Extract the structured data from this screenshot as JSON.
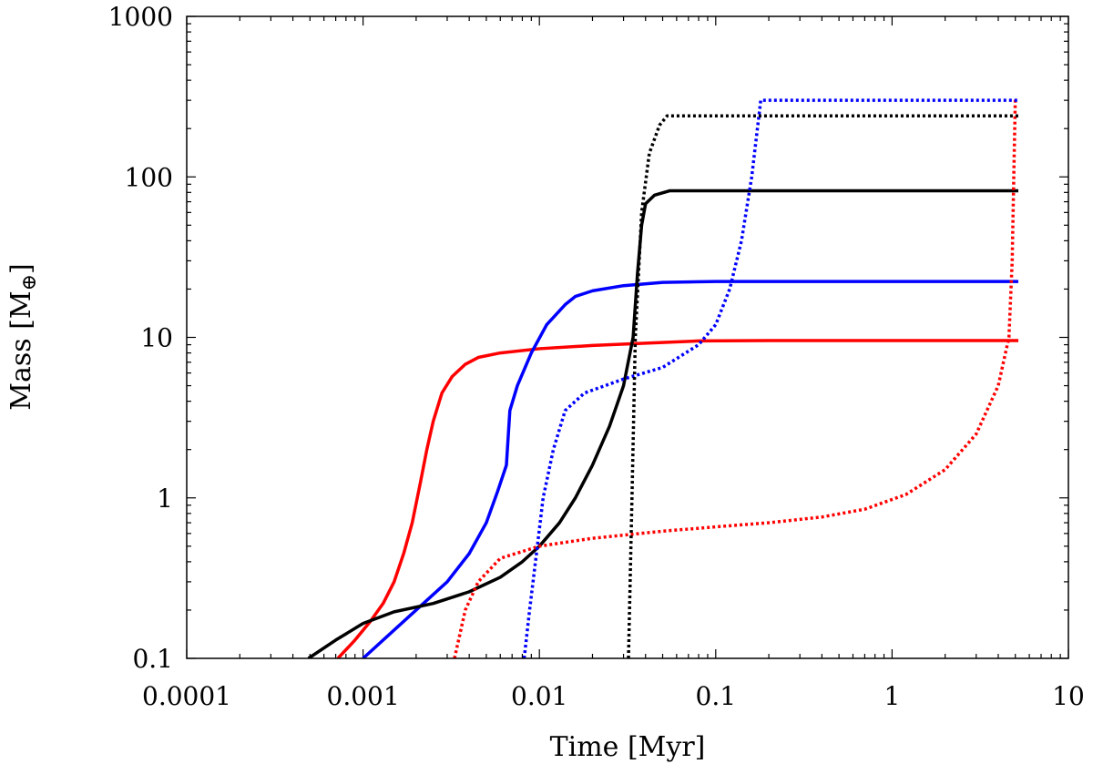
{
  "chart_data": {
    "type": "line",
    "xlabel": "Time [Myr]",
    "ylabel_main": "Mass [M",
    "ylabel_sub": "⊕",
    "ylabel_close": "]",
    "xscale": "log",
    "yscale": "log",
    "xlim": [
      0.0001,
      10
    ],
    "ylim": [
      0.1,
      1000
    ],
    "x_ticks": [
      {
        "value": 0.0001,
        "label": "0.0001"
      },
      {
        "value": 0.001,
        "label": "0.001"
      },
      {
        "value": 0.01,
        "label": "0.01"
      },
      {
        "value": 0.1,
        "label": "0.1"
      },
      {
        "value": 1,
        "label": "1"
      },
      {
        "value": 10,
        "label": "10"
      }
    ],
    "y_ticks": [
      {
        "value": 0.1,
        "label": "0.1"
      },
      {
        "value": 1,
        "label": "1"
      },
      {
        "value": 10,
        "label": "10"
      },
      {
        "value": 100,
        "label": "100"
      },
      {
        "value": 1000,
        "label": "1000"
      }
    ],
    "series": [
      {
        "name": "red-solid",
        "color": "#ff0000",
        "style": "solid",
        "points": [
          [
            0.00072,
            0.1
          ],
          [
            0.0009,
            0.13
          ],
          [
            0.0011,
            0.17
          ],
          [
            0.0013,
            0.22
          ],
          [
            0.0015,
            0.3
          ],
          [
            0.0017,
            0.45
          ],
          [
            0.0019,
            0.7
          ],
          [
            0.0021,
            1.2
          ],
          [
            0.0023,
            2.0
          ],
          [
            0.0025,
            3.0
          ],
          [
            0.0028,
            4.5
          ],
          [
            0.0032,
            5.7
          ],
          [
            0.0038,
            6.8
          ],
          [
            0.0045,
            7.5
          ],
          [
            0.006,
            8.0
          ],
          [
            0.01,
            8.5
          ],
          [
            0.02,
            8.9
          ],
          [
            0.04,
            9.2
          ],
          [
            0.08,
            9.5
          ],
          [
            0.2,
            9.55
          ],
          [
            1,
            9.55
          ],
          [
            5.2,
            9.55
          ]
        ]
      },
      {
        "name": "blue-solid",
        "color": "#0000ff",
        "style": "solid",
        "points": [
          [
            0.001,
            0.1
          ],
          [
            0.0015,
            0.15
          ],
          [
            0.002,
            0.2
          ],
          [
            0.003,
            0.3
          ],
          [
            0.004,
            0.45
          ],
          [
            0.005,
            0.7
          ],
          [
            0.0058,
            1.1
          ],
          [
            0.0065,
            1.6
          ],
          [
            0.0068,
            3.5
          ],
          [
            0.0075,
            5
          ],
          [
            0.009,
            8
          ],
          [
            0.011,
            12
          ],
          [
            0.014,
            16
          ],
          [
            0.016,
            18
          ],
          [
            0.02,
            19.5
          ],
          [
            0.03,
            21
          ],
          [
            0.05,
            22
          ],
          [
            0.1,
            22.3
          ],
          [
            1,
            22.3
          ],
          [
            5.2,
            22.3
          ]
        ]
      },
      {
        "name": "black-solid",
        "color": "#000000",
        "style": "solid",
        "points": [
          [
            0.00049,
            0.1
          ],
          [
            0.0007,
            0.13
          ],
          [
            0.001,
            0.165
          ],
          [
            0.0015,
            0.195
          ],
          [
            0.0025,
            0.22
          ],
          [
            0.004,
            0.26
          ],
          [
            0.006,
            0.32
          ],
          [
            0.008,
            0.4
          ],
          [
            0.01,
            0.5
          ],
          [
            0.013,
            0.7
          ],
          [
            0.016,
            1.0
          ],
          [
            0.02,
            1.6
          ],
          [
            0.025,
            2.8
          ],
          [
            0.03,
            5
          ],
          [
            0.034,
            10
          ],
          [
            0.036,
            25
          ],
          [
            0.038,
            50
          ],
          [
            0.04,
            68
          ],
          [
            0.045,
            77
          ],
          [
            0.055,
            82
          ],
          [
            0.1,
            82
          ],
          [
            1,
            82
          ],
          [
            5.2,
            82
          ]
        ]
      },
      {
        "name": "red-dotted",
        "color": "#ff0000",
        "style": "dotted",
        "points": [
          [
            0.0033,
            0.1
          ],
          [
            0.0038,
            0.2
          ],
          [
            0.0045,
            0.3
          ],
          [
            0.006,
            0.42
          ],
          [
            0.01,
            0.5
          ],
          [
            0.02,
            0.56
          ],
          [
            0.05,
            0.62
          ],
          [
            0.1,
            0.66
          ],
          [
            0.2,
            0.7
          ],
          [
            0.4,
            0.76
          ],
          [
            0.7,
            0.85
          ],
          [
            1.2,
            1.05
          ],
          [
            2,
            1.5
          ],
          [
            3,
            2.5
          ],
          [
            4,
            5
          ],
          [
            4.6,
            10
          ],
          [
            4.8,
            30
          ],
          [
            4.9,
            100
          ],
          [
            5.0,
            310
          ]
        ]
      },
      {
        "name": "blue-dotted",
        "color": "#0000ff",
        "style": "dotted",
        "points": [
          [
            0.0082,
            0.1
          ],
          [
            0.0088,
            0.2
          ],
          [
            0.0095,
            0.4
          ],
          [
            0.0105,
            1.0
          ],
          [
            0.012,
            2.0
          ],
          [
            0.014,
            3.5
          ],
          [
            0.018,
            4.5
          ],
          [
            0.03,
            5.5
          ],
          [
            0.05,
            6.5
          ],
          [
            0.08,
            9
          ],
          [
            0.1,
            12
          ],
          [
            0.12,
            20
          ],
          [
            0.14,
            40
          ],
          [
            0.16,
            100
          ],
          [
            0.18,
            300
          ],
          [
            1,
            300
          ],
          [
            5.2,
            300
          ]
        ]
      },
      {
        "name": "black-dotted",
        "color": "#000000",
        "style": "dotted",
        "points": [
          [
            0.032,
            0.1
          ],
          [
            0.0335,
            1
          ],
          [
            0.035,
            10
          ],
          [
            0.038,
            60
          ],
          [
            0.042,
            140
          ],
          [
            0.048,
            210
          ],
          [
            0.053,
            240
          ],
          [
            0.1,
            240
          ],
          [
            1,
            240
          ],
          [
            5.2,
            240
          ]
        ]
      }
    ]
  }
}
